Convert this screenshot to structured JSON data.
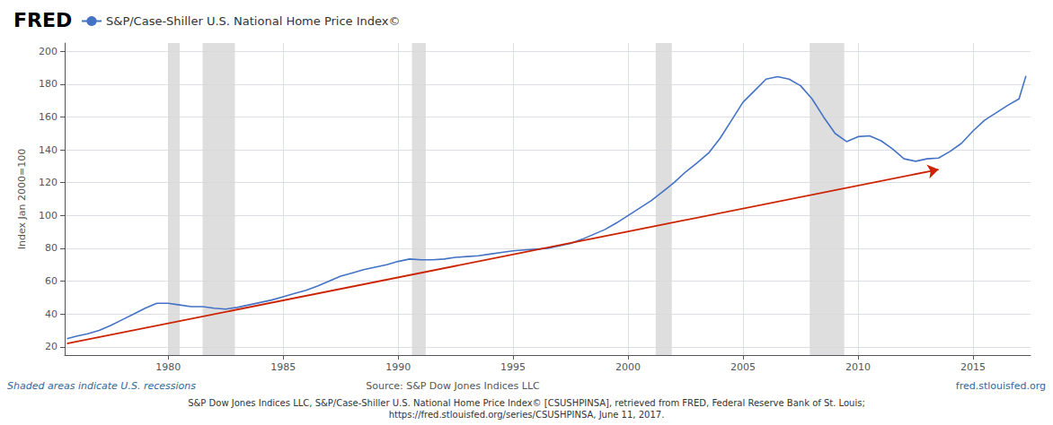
{
  "chart_data": {
    "type": "line",
    "title": "FRED",
    "ylabel": "Index Jan 2000=100",
    "xlim": [
      1975.5,
      2017.5
    ],
    "xticks": [
      1980,
      1985,
      1990,
      1995,
      2000,
      2005,
      2010,
      2015
    ],
    "ylim": [
      15,
      205
    ],
    "yticks": [
      20,
      40,
      60,
      80,
      100,
      120,
      140,
      160,
      180,
      200
    ],
    "grid": true,
    "legend": "top-left",
    "x": [
      1975.6,
      1976,
      1976.5,
      1977,
      1977.5,
      1978,
      1978.5,
      1979,
      1979.5,
      1980,
      1980.5,
      1981,
      1981.5,
      1982,
      1982.5,
      1983,
      1983.5,
      1984,
      1984.5,
      1985,
      1985.5,
      1986,
      1986.5,
      1987,
      1987.5,
      1988,
      1988.5,
      1989,
      1989.5,
      1990,
      1990.5,
      1991,
      1991.5,
      1992,
      1992.5,
      1993,
      1993.5,
      1994,
      1994.5,
      1995,
      1995.5,
      1996,
      1996.5,
      1997,
      1997.5,
      1998,
      1998.5,
      1999,
      1999.5,
      2000,
      2000.5,
      2001,
      2001.5,
      2002,
      2002.5,
      2003,
      2003.5,
      2004,
      2004.5,
      2005,
      2005.5,
      2006,
      2006.5,
      2007,
      2007.5,
      2008,
      2008.5,
      2009,
      2009.5,
      2010,
      2010.5,
      2011,
      2011.5,
      2012,
      2012.5,
      2013,
      2013.5,
      2014,
      2014.5,
      2015,
      2015.5,
      2016,
      2016.5,
      2017,
      2017.3
    ],
    "series": [
      {
        "name": "S&P/Case-Shiller U.S. National Home Price Index©",
        "color": "#4472c4",
        "values": [
          25.0,
          26.5,
          28.0,
          30.0,
          33.0,
          36.5,
          40.0,
          43.5,
          46.5,
          46.5,
          45.5,
          44.5,
          44.5,
          43.5,
          43.0,
          44.0,
          45.5,
          47.0,
          48.5,
          50.5,
          52.5,
          54.5,
          57.0,
          60.0,
          63.0,
          65.0,
          67.0,
          68.5,
          70.0,
          72.0,
          73.5,
          73.0,
          73.0,
          73.5,
          74.5,
          75.0,
          75.5,
          76.5,
          77.5,
          78.5,
          79.0,
          79.5,
          80.0,
          81.5,
          83.0,
          85.5,
          88.5,
          91.5,
          95.5,
          100.0,
          104.5,
          109.0,
          114.5,
          120.0,
          126.5,
          132.0,
          138.0,
          147.0,
          158.0,
          169.0,
          176.0,
          183.0,
          184.5,
          183.0,
          179.0,
          171.0,
          160.0,
          150.0,
          145.0,
          148.0,
          148.5,
          145.5,
          140.5,
          134.5,
          133.0,
          134.5,
          135.0,
          139.0,
          144.0,
          151.5,
          158.0,
          162.5,
          167.0,
          171.0,
          185.0
        ]
      }
    ],
    "recessions": {
      "spans": [
        [
          1980.0,
          1980.5
        ],
        [
          1981.5,
          1982.9
        ],
        [
          1990.6,
          1991.2
        ],
        [
          2001.2,
          2001.9
        ],
        [
          2007.9,
          2009.4
        ]
      ],
      "color": "#d8d8d8"
    },
    "trend": {
      "start": [
        1975.6,
        22
      ],
      "end": [
        2013.5,
        128
      ],
      "color": "#cc2200"
    },
    "annotations": [
      "Shaded areas indicate U.S. recessions",
      "Source: S&P Dow Jones Indices LLC",
      "fred.stlouisfed.org",
      "S&P Dow Jones Indices LLC, S&P/Case-Shiller U.S. National Home Price Index© [CSUSHPINSA], retrieved from FRED, Federal Reserve Bank of St. Louis;\nhttps://fred.stlouisfed.org/series/CSUSHPINSA, June 11, 2017."
    ]
  }
}
